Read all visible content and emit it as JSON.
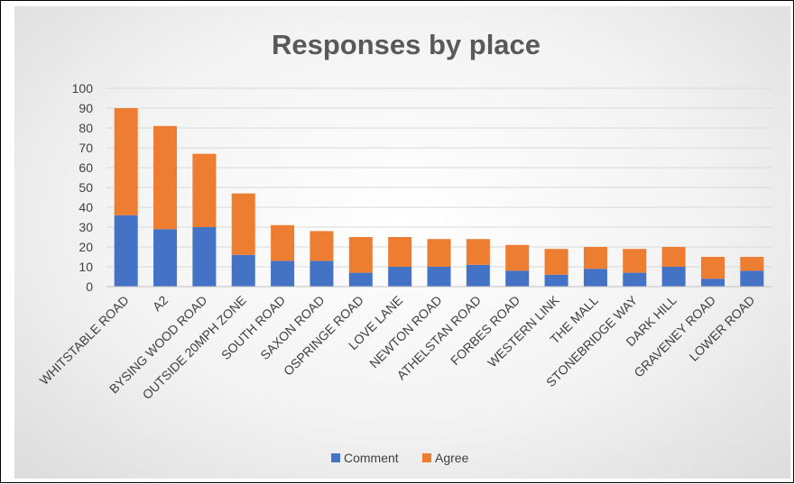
{
  "chart_data": {
    "type": "bar",
    "stacked": true,
    "title": "Responses by place",
    "xlabel": "",
    "ylabel": "",
    "ylim": [
      0,
      100
    ],
    "yticks": [
      0,
      10,
      20,
      30,
      40,
      50,
      60,
      70,
      80,
      90,
      100
    ],
    "grid": true,
    "legend_position": "bottom",
    "categories": [
      "WHITSTABLE ROAD",
      "A2",
      "BYSING WOOD ROAD",
      "OUTSIDE 20MPH ZONE",
      "SOUTH ROAD",
      "SAXON ROAD",
      "OSPRINGE ROAD",
      "LOVE LANE",
      "NEWTON ROAD",
      "ATHELSTAN ROAD",
      "FORBES ROAD",
      "WESTERN LINK",
      "THE MALL",
      "STONEBRIDGE WAY",
      "DARK HILL",
      "GRAVENEY ROAD",
      "LOWER ROAD"
    ],
    "series": [
      {
        "name": "Comment",
        "color": "#4472c4",
        "values": [
          36,
          29,
          30,
          16,
          13,
          13,
          7,
          10,
          10,
          11,
          8,
          6,
          9,
          7,
          10,
          4,
          8
        ]
      },
      {
        "name": "Agree",
        "color": "#ed7d31",
        "values": [
          54,
          52,
          37,
          31,
          18,
          15,
          18,
          15,
          14,
          13,
          13,
          13,
          11,
          12,
          10,
          11,
          7
        ]
      }
    ]
  }
}
